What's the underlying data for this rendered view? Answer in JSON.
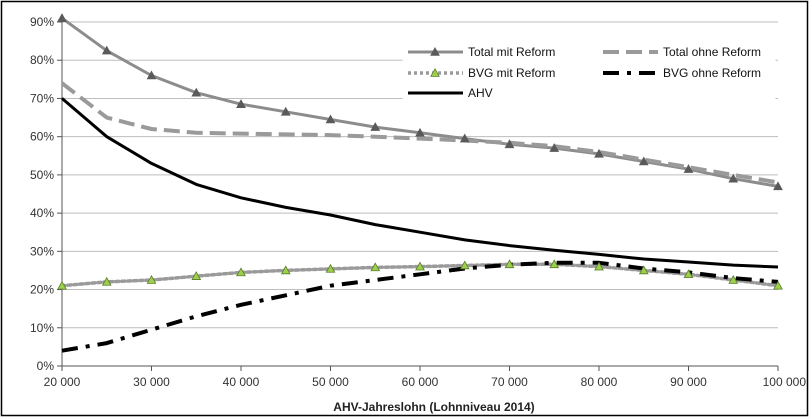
{
  "chart_data": {
    "type": "line",
    "title": "",
    "xlabel": "AHV-Jahreslohn (Lohnniveau 2014)",
    "ylabel": "",
    "xlim": [
      20000,
      100000
    ],
    "ylim": [
      0,
      90
    ],
    "x_ticks": [
      20000,
      30000,
      40000,
      50000,
      60000,
      70000,
      80000,
      90000,
      100000
    ],
    "x_tick_labels": [
      "20 000",
      "30 000",
      "40 000",
      "50 000",
      "60 000",
      "70 000",
      "80 000",
      "90 000",
      "100 000"
    ],
    "y_ticks": [
      0,
      10,
      20,
      30,
      40,
      50,
      60,
      70,
      80,
      90
    ],
    "y_tick_labels": [
      "0%",
      "10%",
      "20%",
      "30%",
      "40%",
      "50%",
      "60%",
      "70%",
      "80%",
      "90%"
    ],
    "grid": "horizontal",
    "legend_position": "top-right",
    "x": [
      20000,
      25000,
      30000,
      35000,
      40000,
      45000,
      50000,
      55000,
      60000,
      65000,
      70000,
      75000,
      80000,
      85000,
      90000,
      95000,
      100000
    ],
    "series": [
      {
        "name": "Total mit Reform",
        "color": "#8c8c8c",
        "style": "solid",
        "marker": "triangle-gray",
        "values": [
          91,
          82.5,
          76,
          71.5,
          68.5,
          66.5,
          64.5,
          62.5,
          61,
          59.5,
          58,
          57,
          55.5,
          53.5,
          51.5,
          49,
          47
        ]
      },
      {
        "name": "Total ohne Reform",
        "color": "#9a9a9a",
        "style": "dashed",
        "marker": "none",
        "values": [
          74,
          65,
          62,
          61,
          60.8,
          60.6,
          60.4,
          60,
          59.5,
          59,
          58.4,
          57.5,
          56,
          54,
          52,
          50,
          48
        ]
      },
      {
        "name": "BVG mit Reform",
        "color": "#9a9a9a",
        "style": "dotted",
        "marker": "triangle-green",
        "values": [
          21,
          22,
          22.5,
          23.5,
          24.5,
          25,
          25.4,
          25.8,
          26,
          26.3,
          26.6,
          26.6,
          26,
          25,
          24,
          22.5,
          21
        ]
      },
      {
        "name": "BVG ohne Reform",
        "color": "#000000",
        "style": "dashdot",
        "marker": "none",
        "values": [
          4,
          6,
          9.5,
          13,
          16,
          18.5,
          21,
          22.5,
          24,
          25.5,
          26.5,
          27,
          27,
          25.5,
          24.5,
          23,
          22
        ]
      },
      {
        "name": "AHV",
        "color": "#000000",
        "style": "solid",
        "marker": "none",
        "values": [
          70,
          60,
          53,
          47.5,
          44,
          41.5,
          39.5,
          37,
          35,
          33,
          31.5,
          30.3,
          29.2,
          28,
          27.2,
          26.4,
          25.9
        ]
      }
    ]
  }
}
